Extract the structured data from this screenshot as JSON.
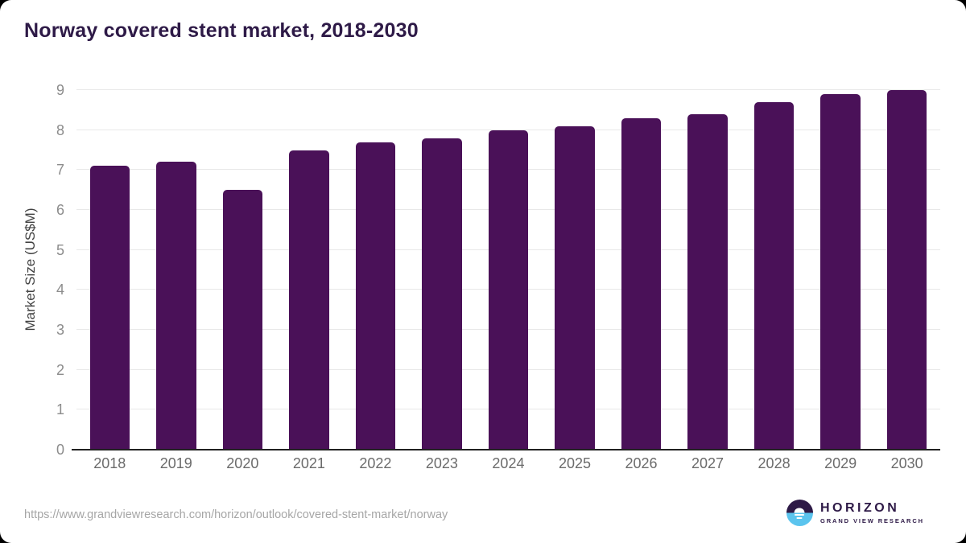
{
  "title": "Norway covered stent market, 2018-2030",
  "footer": {
    "source_url": "https://www.grandviewresearch.com/horizon/outlook/covered-stent-market/norway",
    "logo": {
      "name": "HORIZON",
      "subtitle": "GRAND VIEW RESEARCH",
      "mark": "sunset-circle-icon"
    }
  },
  "colors": {
    "bar": "#4a1158",
    "title": "#2e1a47",
    "gridline": "#e8e8e8",
    "axis": "#212121",
    "ytick": "#8c8c8c",
    "xtick": "#6b6b6b",
    "axis_title": "#424242",
    "url": "#a6a6a6",
    "logo_blue": "#5bc4ee",
    "logo_purple": "#2e1a47"
  },
  "chart_data": {
    "type": "bar",
    "title": "Norway covered stent market, 2018-2030",
    "categories": [
      "2018",
      "2019",
      "2020",
      "2021",
      "2022",
      "2023",
      "2024",
      "2025",
      "2026",
      "2027",
      "2028",
      "2029",
      "2030"
    ],
    "values": [
      7.1,
      7.2,
      6.5,
      7.5,
      7.7,
      7.8,
      8.0,
      8.1,
      8.3,
      8.4,
      8.7,
      8.9,
      9.0
    ],
    "xlabel": "",
    "ylabel": "Market Size (US$M)",
    "ylim": [
      0,
      9
    ],
    "ytick_step": 1,
    "yticks": [
      0,
      1,
      2,
      3,
      4,
      5,
      6,
      7,
      8,
      9
    ],
    "grid": true,
    "legend_position": "none",
    "bar_color": "#4a1158"
  }
}
